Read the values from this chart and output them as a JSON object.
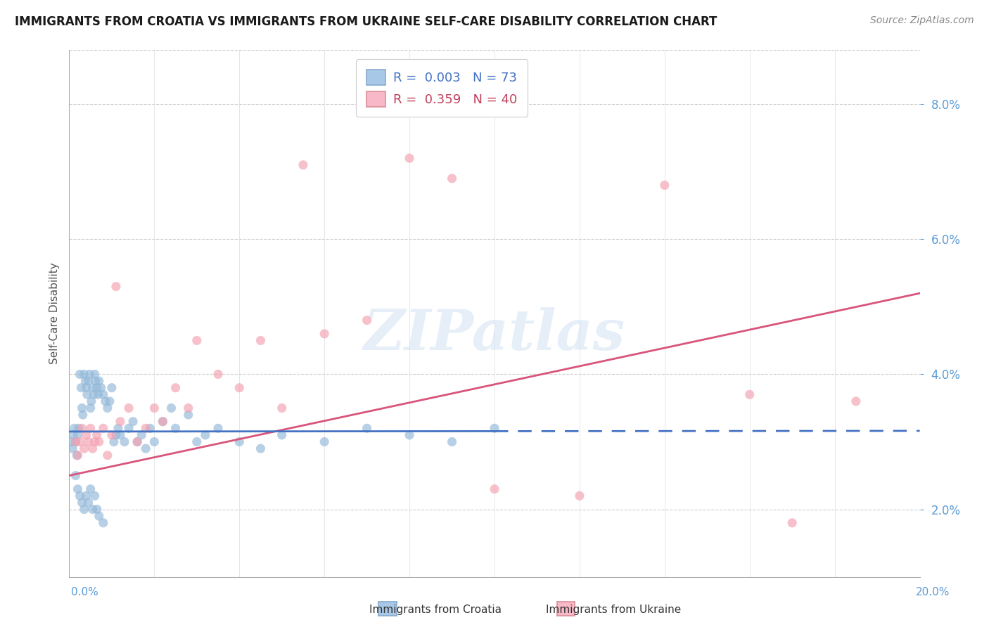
{
  "title": "IMMIGRANTS FROM CROATIA VS IMMIGRANTS FROM UKRAINE SELF-CARE DISABILITY CORRELATION CHART",
  "source": "Source: ZipAtlas.com",
  "ylabel": "Self-Care Disability",
  "xlim": [
    0.0,
    20.0
  ],
  "ylim": [
    1.0,
    8.8
  ],
  "yticks": [
    2.0,
    4.0,
    6.0,
    8.0
  ],
  "croatia_color": "#92b8d9",
  "ukraine_color": "#f4a0b0",
  "croatia_line_color": "#4472c4",
  "ukraine_line_color": "#d9547a",
  "legend_r1": "0.003",
  "legend_n1": "73",
  "legend_r2": "0.359",
  "legend_n2": "40",
  "watermark": "ZIPatlas",
  "background_color": "#ffffff",
  "grid_color": "#cccccc",
  "croatia_x": [
    0.05,
    0.08,
    0.1,
    0.12,
    0.15,
    0.18,
    0.2,
    0.22,
    0.25,
    0.28,
    0.3,
    0.32,
    0.35,
    0.38,
    0.4,
    0.42,
    0.45,
    0.48,
    0.5,
    0.52,
    0.55,
    0.58,
    0.6,
    0.62,
    0.65,
    0.68,
    0.7,
    0.75,
    0.8,
    0.85,
    0.9,
    0.95,
    1.0,
    1.05,
    1.1,
    1.15,
    1.2,
    1.3,
    1.4,
    1.5,
    1.6,
    1.7,
    1.8,
    1.9,
    2.0,
    2.2,
    2.4,
    2.5,
    2.8,
    3.0,
    3.2,
    3.5,
    4.0,
    4.5,
    5.0,
    6.0,
    7.0,
    8.0,
    9.0,
    10.0,
    0.15,
    0.2,
    0.25,
    0.3,
    0.35,
    0.4,
    0.45,
    0.5,
    0.55,
    0.6,
    0.65,
    0.7,
    0.8
  ],
  "croatia_y": [
    3.0,
    2.9,
    3.1,
    3.2,
    3.0,
    2.8,
    3.1,
    3.2,
    4.0,
    3.8,
    3.5,
    3.4,
    4.0,
    3.9,
    3.8,
    3.7,
    3.9,
    4.0,
    3.5,
    3.6,
    3.8,
    3.7,
    4.0,
    3.9,
    3.8,
    3.7,
    3.9,
    3.8,
    3.7,
    3.6,
    3.5,
    3.6,
    3.8,
    3.0,
    3.1,
    3.2,
    3.1,
    3.0,
    3.2,
    3.3,
    3.0,
    3.1,
    2.9,
    3.2,
    3.0,
    3.3,
    3.5,
    3.2,
    3.4,
    3.0,
    3.1,
    3.2,
    3.0,
    2.9,
    3.1,
    3.0,
    3.2,
    3.1,
    3.0,
    3.2,
    2.5,
    2.3,
    2.2,
    2.1,
    2.0,
    2.2,
    2.1,
    2.3,
    2.0,
    2.2,
    2.0,
    1.9,
    1.8
  ],
  "ukraine_x": [
    0.15,
    0.2,
    0.25,
    0.3,
    0.35,
    0.4,
    0.45,
    0.5,
    0.55,
    0.6,
    0.65,
    0.7,
    0.8,
    0.9,
    1.0,
    1.1,
    1.2,
    1.4,
    1.6,
    1.8,
    2.0,
    2.2,
    2.5,
    2.8,
    3.0,
    3.5,
    4.0,
    4.5,
    5.0,
    5.5,
    6.0,
    7.0,
    8.0,
    9.0,
    10.0,
    12.0,
    14.0,
    16.0,
    17.0,
    18.5
  ],
  "ukraine_y": [
    3.0,
    2.8,
    3.0,
    3.2,
    2.9,
    3.1,
    3.0,
    3.2,
    2.9,
    3.0,
    3.1,
    3.0,
    3.2,
    2.8,
    3.1,
    5.3,
    3.3,
    3.5,
    3.0,
    3.2,
    3.5,
    3.3,
    3.8,
    3.5,
    4.5,
    4.0,
    3.8,
    4.5,
    3.5,
    7.1,
    4.6,
    4.8,
    7.2,
    6.9,
    2.3,
    2.2,
    6.8,
    3.7,
    1.8,
    3.6
  ]
}
